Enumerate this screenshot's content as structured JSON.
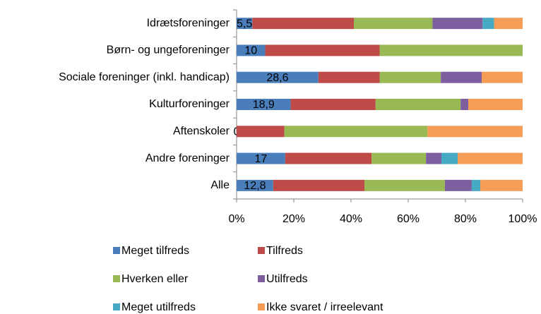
{
  "chart_data": {
    "type": "stacked_bar_horizontal",
    "categories": [
      "Idrætsforeninger",
      "Børn- og ungeforeninger",
      "Sociale foreninger (inkl. handicap)",
      "Kulturforeninger",
      "Aftenskoler",
      "Andre foreninger",
      "Alle"
    ],
    "series": [
      {
        "name": "Meget tilfreds",
        "color": "#4a7ebb",
        "values": [
          5.5,
          10,
          28.6,
          18.9,
          0,
          17,
          12.8
        ],
        "value_labels": [
          "5,5",
          "10",
          "28,6",
          "18,9",
          "0",
          "17",
          "12,8"
        ]
      },
      {
        "name": "Tilfreds",
        "color": "#be4b48",
        "values": [
          35.5,
          40,
          21.4,
          29.7,
          16.7,
          30.2,
          31.9
        ]
      },
      {
        "name": "Hverken eller",
        "color": "#98b954",
        "values": [
          27.5,
          50,
          21.4,
          29.7,
          50,
          19,
          28.1
        ]
      },
      {
        "name": "Utilfreds",
        "color": "#7d5fa0",
        "values": [
          17.5,
          0,
          14.3,
          2.7,
          0,
          5.4,
          9.4
        ]
      },
      {
        "name": "Meget utilfreds",
        "color": "#46aac5",
        "values": [
          4,
          0,
          0,
          0,
          0,
          5.7,
          3
        ]
      },
      {
        "name": "Ikke svaret / irreelevant",
        "color": "#f59d56",
        "values": [
          10,
          0,
          14.3,
          19,
          33.3,
          22.7,
          14.8
        ]
      }
    ],
    "xlim": [
      0,
      100
    ],
    "xticks": [
      {
        "value": 0,
        "label": "0%"
      },
      {
        "value": 20,
        "label": "20%"
      },
      {
        "value": 40,
        "label": "40%"
      },
      {
        "value": 60,
        "label": "60%"
      },
      {
        "value": 80,
        "label": "80%"
      },
      {
        "value": 100,
        "label": "100%"
      }
    ],
    "legend": "bottom"
  }
}
